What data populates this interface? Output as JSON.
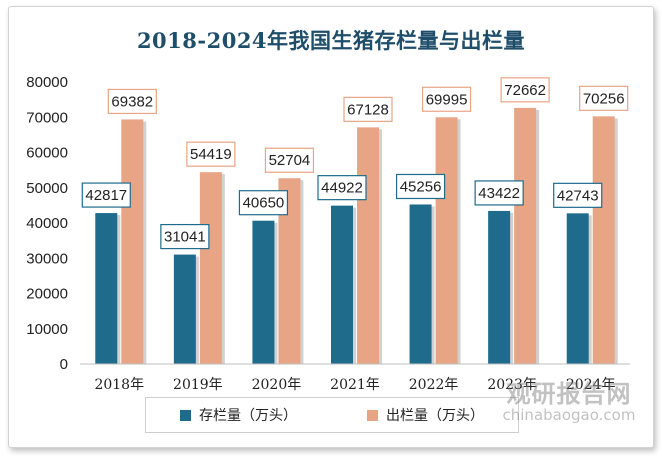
{
  "chart_data": {
    "type": "bar",
    "title": "2018-2024年我国生猪存栏量与出栏量",
    "categories": [
      "2018年",
      "2019年",
      "2020年",
      "2021年",
      "2022年",
      "2023年",
      "2024年"
    ],
    "series": [
      {
        "name": "存栏量（万头）",
        "color": "#1f6b8c",
        "values": [
          42817,
          31041,
          40650,
          44922,
          45256,
          43422,
          42743
        ]
      },
      {
        "name": "出栏量（万头）",
        "color": "#e8a585",
        "values": [
          69382,
          54419,
          52704,
          67128,
          69995,
          72662,
          70256
        ]
      }
    ],
    "yticks": [
      0,
      10000,
      20000,
      30000,
      40000,
      50000,
      60000,
      70000,
      80000
    ],
    "ylim": [
      0,
      80000
    ],
    "xlabel": "",
    "ylabel": "",
    "grid": false,
    "legend_position": "bottom"
  },
  "watermark": {
    "brand": "观研报告网",
    "url": "chinabaogao.com"
  }
}
